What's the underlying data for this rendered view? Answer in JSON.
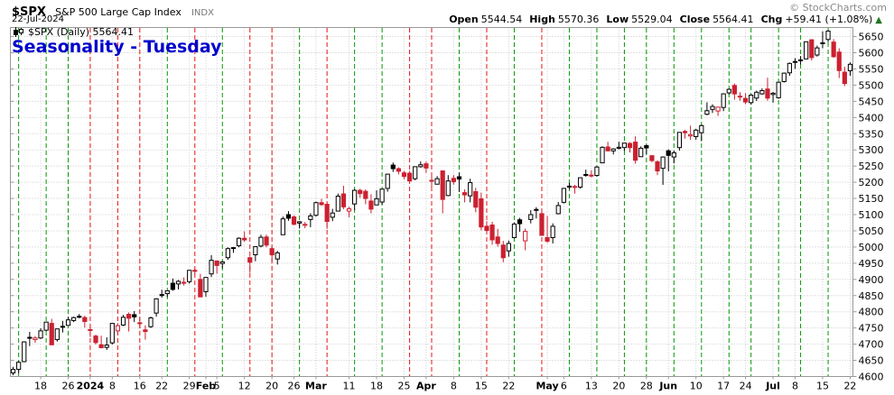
{
  "header": {
    "symbol": "$SPX",
    "name": "S&P 500 Large Cap Index",
    "exchange": "INDX",
    "date": "22-Jul-2024",
    "copyright": "© StockCharts.com"
  },
  "quote": {
    "open_label": "Open",
    "open": "5544.54",
    "high_label": "High",
    "high": "5570.36",
    "low_label": "Low",
    "low": "5529.04",
    "close_label": "Close",
    "close": "5564.41",
    "chg_label": "Chg",
    "chg": "+59.41 (+1.08%)",
    "arrow": "▲",
    "direction": "up"
  },
  "legend": {
    "text": "$SPX (Daily) 5564.41"
  },
  "title": {
    "text": "Seasonality - Tuesday"
  },
  "colors": {
    "candle_up": "#000000",
    "candle_down": "#cc2030",
    "tuesday_up_line": "#009900",
    "tuesday_down_line": "#ee1111",
    "grid": "#c6c6c6",
    "axis_border": "#999999",
    "title_blue": "#0000cc",
    "copyright_gray": "#8a8a8a",
    "arrow_green": "#227722",
    "label_black": "#000000"
  },
  "chart_data": {
    "type": "candlestick",
    "symbol": "$SPX",
    "timeframe": "Daily",
    "title": "Seasonality - Tuesday",
    "ylim": [
      4600,
      5678
    ],
    "y_ticks": [
      5650,
      5600,
      5550,
      5500,
      5450,
      5400,
      5350,
      5300,
      5250,
      5200,
      5150,
      5100,
      5050,
      5000,
      4950,
      4900,
      4850,
      4800,
      4750,
      4700,
      4650,
      4600
    ],
    "x_labels": [
      {
        "i": 5,
        "t": "18"
      },
      {
        "i": 10,
        "t": "26"
      },
      {
        "i": 14,
        "t": "2024",
        "b": true
      },
      {
        "i": 18,
        "t": "8"
      },
      {
        "i": 23,
        "t": "16"
      },
      {
        "i": 27,
        "t": "22"
      },
      {
        "i": 32,
        "t": "29"
      },
      {
        "i": 35,
        "t": "Feb",
        "b": true
      },
      {
        "i": 37,
        "t": "5"
      },
      {
        "i": 42,
        "t": "12"
      },
      {
        "i": 47,
        "t": "20"
      },
      {
        "i": 51,
        "t": "26"
      },
      {
        "i": 55,
        "t": "Mar",
        "b": true
      },
      {
        "i": 61,
        "t": "11"
      },
      {
        "i": 66,
        "t": "18"
      },
      {
        "i": 71,
        "t": "25"
      },
      {
        "i": 75,
        "t": "Apr",
        "b": true
      },
      {
        "i": 80,
        "t": "8"
      },
      {
        "i": 85,
        "t": "15"
      },
      {
        "i": 90,
        "t": "22"
      },
      {
        "i": 97,
        "t": "May",
        "b": true
      },
      {
        "i": 100,
        "t": "6"
      },
      {
        "i": 105,
        "t": "13"
      },
      {
        "i": 110,
        "t": "20"
      },
      {
        "i": 115,
        "t": "28"
      },
      {
        "i": 119,
        "t": "Jun",
        "b": true
      },
      {
        "i": 124,
        "t": "10"
      },
      {
        "i": 129,
        "t": "17"
      },
      {
        "i": 133,
        "t": "24"
      },
      {
        "i": 138,
        "t": "Jul",
        "b": true
      },
      {
        "i": 142,
        "t": "8"
      },
      {
        "i": 147,
        "t": "15"
      },
      {
        "i": 152,
        "t": "22"
      }
    ],
    "tuesday_indices": [
      1,
      6,
      10,
      14,
      19,
      23,
      28,
      33,
      38,
      43,
      47,
      52,
      57,
      62,
      67,
      72,
      76,
      81,
      86,
      91,
      96,
      101,
      106,
      111,
      115,
      120,
      125,
      130,
      134,
      139,
      143,
      148
    ],
    "candles": [
      [
        "12-11",
        4611,
        4630,
        4604,
        4622
      ],
      [
        "12-12",
        4622,
        4648,
        4608,
        4644
      ],
      [
        "12-13",
        4646,
        4709,
        4644,
        4707
      ],
      [
        "12-14",
        4721,
        4738,
        4694,
        4720
      ],
      [
        "12-15",
        4714,
        4725,
        4704,
        4719
      ],
      [
        "12-18",
        4719,
        4749,
        4716,
        4741
      ],
      [
        "12-19",
        4743,
        4769,
        4740,
        4768
      ],
      [
        "12-20",
        4764,
        4778,
        4697,
        4698
      ],
      [
        "12-21",
        4714,
        4748,
        4708,
        4747
      ],
      [
        "12-22",
        4753,
        4772,
        4736,
        4755
      ],
      [
        "12-26",
        4758,
        4784,
        4757,
        4775
      ],
      [
        "12-27",
        4773,
        4785,
        4768,
        4782
      ],
      [
        "12-28",
        4786,
        4793,
        4780,
        4783
      ],
      [
        "12-29",
        4782,
        4788,
        4751,
        4770
      ],
      [
        "01-02",
        4745,
        4754,
        4722,
        4743
      ],
      [
        "01-03",
        4725,
        4729,
        4699,
        4705
      ],
      [
        "01-04",
        4698,
        4726,
        4687,
        4689
      ],
      [
        "01-05",
        4690,
        4721,
        4682,
        4697
      ],
      [
        "01-08",
        4704,
        4764,
        4699,
        4764
      ],
      [
        "01-09",
        4741,
        4765,
        4730,
        4757
      ],
      [
        "01-10",
        4759,
        4790,
        4756,
        4783
      ],
      [
        "01-11",
        4792,
        4798,
        4739,
        4780
      ],
      [
        "01-12",
        4791,
        4802,
        4768,
        4784
      ],
      [
        "01-16",
        4766,
        4782,
        4749,
        4766
      ],
      [
        "01-17",
        4744,
        4758,
        4714,
        4739
      ],
      [
        "01-18",
        4754,
        4785,
        4750,
        4781
      ],
      [
        "01-19",
        4796,
        4842,
        4785,
        4840
      ],
      [
        "01-22",
        4853,
        4868,
        4844,
        4850
      ],
      [
        "01-23",
        4856,
        4866,
        4845,
        4865
      ],
      [
        "01-24",
        4888,
        4903,
        4865,
        4869
      ],
      [
        "01-25",
        4886,
        4898,
        4869,
        4894
      ],
      [
        "01-26",
        4889,
        4906,
        4881,
        4891
      ],
      [
        "01-29",
        4893,
        4929,
        4887,
        4928
      ],
      [
        "01-30",
        4928,
        4934,
        4916,
        4925
      ],
      [
        "01-31",
        4900,
        4917,
        4845,
        4846
      ],
      [
        "02-01",
        4862,
        4906,
        4846,
        4906
      ],
      [
        "02-02",
        4917,
        4975,
        4907,
        4959
      ],
      [
        "02-05",
        4957,
        4958,
        4918,
        4943
      ],
      [
        "02-06",
        4949,
        4957,
        4934,
        4954
      ],
      [
        "02-07",
        4967,
        4999,
        4960,
        4995
      ],
      [
        "02-08",
        4996,
        5000,
        4982,
        4998
      ],
      [
        "02-09",
        5004,
        5030,
        4999,
        5027
      ],
      [
        "02-12",
        5027,
        5048,
        5016,
        5022
      ],
      [
        "02-13",
        4967,
        4971,
        4920,
        4953
      ],
      [
        "02-14",
        4976,
        5002,
        4956,
        5001
      ],
      [
        "02-15",
        5003,
        5038,
        4999,
        5030
      ],
      [
        "02-16",
        5031,
        5038,
        4999,
        5006
      ],
      [
        "02-20",
        4995,
        5000,
        4955,
        4976
      ],
      [
        "02-21",
        4963,
        4988,
        4946,
        4982
      ],
      [
        "02-22",
        5038,
        5094,
        5038,
        5087
      ],
      [
        "02-23",
        5100,
        5111,
        5081,
        5089
      ],
      [
        "02-26",
        5093,
        5097,
        5068,
        5070
      ],
      [
        "02-27",
        5074,
        5080,
        5057,
        5078
      ],
      [
        "02-28",
        5067,
        5077,
        5058,
        5070
      ],
      [
        "02-29",
        5085,
        5104,
        5061,
        5096
      ],
      [
        "03-01",
        5098,
        5140,
        5094,
        5137
      ],
      [
        "03-04",
        5137,
        5149,
        5127,
        5131
      ],
      [
        "03-05",
        5132,
        5136,
        5056,
        5079
      ],
      [
        "03-06",
        5092,
        5118,
        5080,
        5105
      ],
      [
        "03-07",
        5111,
        5165,
        5111,
        5157
      ],
      [
        "03-08",
        5164,
        5189,
        5117,
        5124
      ],
      [
        "03-11",
        5111,
        5124,
        5092,
        5118
      ],
      [
        "03-12",
        5133,
        5179,
        5114,
        5175
      ],
      [
        "03-13",
        5175,
        5180,
        5152,
        5165
      ],
      [
        "03-14",
        5172,
        5178,
        5132,
        5150
      ],
      [
        "03-15",
        5142,
        5163,
        5104,
        5117
      ],
      [
        "03-18",
        5130,
        5175,
        5129,
        5149
      ],
      [
        "03-19",
        5139,
        5180,
        5131,
        5179
      ],
      [
        "03-20",
        5181,
        5226,
        5171,
        5225
      ],
      [
        "03-21",
        5253,
        5261,
        5232,
        5242
      ],
      [
        "03-22",
        5242,
        5246,
        5224,
        5234
      ],
      [
        "03-25",
        5229,
        5235,
        5210,
        5218
      ],
      [
        "03-26",
        5228,
        5235,
        5203,
        5204
      ],
      [
        "03-27",
        5211,
        5249,
        5206,
        5248
      ],
      [
        "03-28",
        5248,
        5264,
        5245,
        5254
      ],
      [
        "04-01",
        5257,
        5264,
        5229,
        5244
      ],
      [
        "04-02",
        5204,
        5224,
        5184,
        5206
      ],
      [
        "04-03",
        5194,
        5219,
        5194,
        5211
      ],
      [
        "04-04",
        5235,
        5237,
        5104,
        5147
      ],
      [
        "04-05",
        5159,
        5222,
        5157,
        5204
      ],
      [
        "04-08",
        5212,
        5222,
        5193,
        5202
      ],
      [
        "04-09",
        5217,
        5230,
        5170,
        5210
      ],
      [
        "04-10",
        5168,
        5178,
        5138,
        5161
      ],
      [
        "04-11",
        5158,
        5211,
        5138,
        5199
      ],
      [
        "04-12",
        5171,
        5183,
        5107,
        5123
      ],
      [
        "04-15",
        5149,
        5168,
        5052,
        5062
      ],
      [
        "04-16",
        5064,
        5080,
        5039,
        5051
      ],
      [
        "04-17",
        5068,
        5078,
        5007,
        5022
      ],
      [
        "04-18",
        5031,
        5056,
        5001,
        5011
      ],
      [
        "04-19",
        5006,
        5019,
        4953,
        4967
      ],
      [
        "04-22",
        4988,
        5020,
        4970,
        5011
      ],
      [
        "04-23",
        5029,
        5076,
        5027,
        5071
      ],
      [
        "04-24",
        5084,
        5090,
        5047,
        5072
      ],
      [
        "04-25",
        5019,
        5057,
        4990,
        5048
      ],
      [
        "04-26",
        5085,
        5114,
        5073,
        5100
      ],
      [
        "04-29",
        5114,
        5123,
        5088,
        5116
      ],
      [
        "04-30",
        5103,
        5110,
        5035,
        5036
      ],
      [
        "05-01",
        5029,
        5096,
        5013,
        5018
      ],
      [
        "05-02",
        5029,
        5073,
        5011,
        5064
      ],
      [
        "05-03",
        5103,
        5139,
        5101,
        5128
      ],
      [
        "05-06",
        5138,
        5181,
        5135,
        5181
      ],
      [
        "05-07",
        5187,
        5198,
        5178,
        5188
      ],
      [
        "05-08",
        5184,
        5192,
        5165,
        5187
      ],
      [
        "05-09",
        5185,
        5215,
        5180,
        5214
      ],
      [
        "05-10",
        5224,
        5239,
        5217,
        5223
      ],
      [
        "05-13",
        5222,
        5237,
        5215,
        5221
      ],
      [
        "05-14",
        5221,
        5250,
        5217,
        5247
      ],
      [
        "05-15",
        5260,
        5311,
        5259,
        5308
      ],
      [
        "05-16",
        5309,
        5325,
        5296,
        5297
      ],
      [
        "05-17",
        5297,
        5305,
        5286,
        5303
      ],
      [
        "05-20",
        5305,
        5325,
        5302,
        5308
      ],
      [
        "05-21",
        5307,
        5322,
        5297,
        5321
      ],
      [
        "05-22",
        5320,
        5324,
        5292,
        5307
      ],
      [
        "05-23",
        5324,
        5342,
        5257,
        5268
      ],
      [
        "05-24",
        5279,
        5311,
        5278,
        5305
      ],
      [
        "05-28",
        5313,
        5316,
        5287,
        5306
      ],
      [
        "05-29",
        5282,
        5283,
        5262,
        5267
      ],
      [
        "05-30",
        5263,
        5268,
        5222,
        5235
      ],
      [
        "05-31",
        5243,
        5280,
        5192,
        5278
      ],
      [
        "06-03",
        5297,
        5302,
        5234,
        5283
      ],
      [
        "06-04",
        5278,
        5298,
        5258,
        5291
      ],
      [
        "06-05",
        5307,
        5354,
        5298,
        5354
      ],
      [
        "06-06",
        5357,
        5362,
        5335,
        5353
      ],
      [
        "06-07",
        5343,
        5375,
        5331,
        5347
      ],
      [
        "06-10",
        5341,
        5365,
        5331,
        5361
      ],
      [
        "06-11",
        5353,
        5379,
        5327,
        5375
      ],
      [
        "06-12",
        5410,
        5447,
        5407,
        5421
      ],
      [
        "06-13",
        5425,
        5441,
        5414,
        5434
      ],
      [
        "06-14",
        5420,
        5433,
        5405,
        5432
      ],
      [
        "06-17",
        5431,
        5474,
        5420,
        5473
      ],
      [
        "06-18",
        5476,
        5490,
        5471,
        5487
      ],
      [
        "06-20",
        5499,
        5505,
        5455,
        5473
      ],
      [
        "06-21",
        5466,
        5478,
        5452,
        5465
      ],
      [
        "06-24",
        5459,
        5475,
        5441,
        5448
      ],
      [
        "06-25",
        5446,
        5472,
        5440,
        5469
      ],
      [
        "06-26",
        5460,
        5483,
        5451,
        5478
      ],
      [
        "06-27",
        5473,
        5490,
        5470,
        5483
      ],
      [
        "06-28",
        5488,
        5523,
        5452,
        5460
      ],
      [
        "07-01",
        5471,
        5479,
        5446,
        5475
      ],
      [
        "07-02",
        5461,
        5510,
        5458,
        5509
      ],
      [
        "07-03",
        5511,
        5539,
        5508,
        5537
      ],
      [
        "07-05",
        5538,
        5570,
        5529,
        5567
      ],
      [
        "07-08",
        5572,
        5583,
        5550,
        5573
      ],
      [
        "07-09",
        5578,
        5590,
        5564,
        5577
      ],
      [
        "07-10",
        5581,
        5635,
        5580,
        5634
      ],
      [
        "07-11",
        5640,
        5642,
        5576,
        5585
      ],
      [
        "07-12",
        5593,
        5622,
        5588,
        5615
      ],
      [
        "07-15",
        5628,
        5666,
        5614,
        5631
      ],
      [
        "07-16",
        5641,
        5670,
        5633,
        5667
      ],
      [
        "07-17",
        5633,
        5642,
        5584,
        5588
      ],
      [
        "07-18",
        5602,
        5614,
        5522,
        5545
      ],
      [
        "07-19",
        5540,
        5557,
        5497,
        5505
      ],
      [
        "07-22",
        5544.5,
        5570.4,
        5529,
        5564.4
      ]
    ]
  }
}
